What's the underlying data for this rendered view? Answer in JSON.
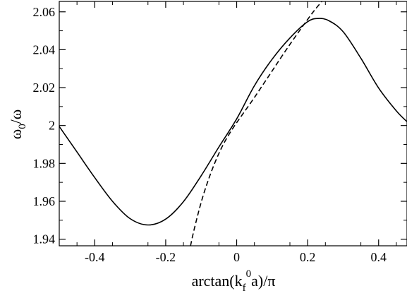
{
  "chart_data": {
    "type": "line",
    "xlabel": {
      "text": "arctan(k",
      "sub": "f",
      "sup": "0",
      "tail": "a)/π"
    },
    "ylabel": {
      "main": "ω",
      "sub": "0",
      "tail": "/ω"
    },
    "xlim": [
      -0.5,
      0.48
    ],
    "ylim": [
      1.9365,
      2.0655
    ],
    "x_ticks": [
      {
        "value": -0.4,
        "label": "-0.4"
      },
      {
        "value": -0.2,
        "label": "-0.2"
      },
      {
        "value": 0,
        "label": "0"
      },
      {
        "value": 0.2,
        "label": "0.2"
      },
      {
        "value": 0.4,
        "label": "0.4"
      }
    ],
    "y_ticks": [
      {
        "value": 1.94,
        "label": "1.94"
      },
      {
        "value": 1.96,
        "label": "1.96"
      },
      {
        "value": 1.98,
        "label": "1.98"
      },
      {
        "value": 2.0,
        "label": "2"
      },
      {
        "value": 2.02,
        "label": "2.02"
      },
      {
        "value": 2.04,
        "label": "2.04"
      },
      {
        "value": 2.06,
        "label": "2.06"
      }
    ],
    "series": [
      {
        "style": "solid",
        "color": "#000000",
        "x": [
          -0.5,
          -0.45,
          -0.4,
          -0.35,
          -0.3,
          -0.25,
          -0.2,
          -0.15,
          -0.1,
          -0.05,
          0,
          0.05,
          0.1,
          0.15,
          0.2,
          0.23,
          0.26,
          0.3,
          0.35,
          0.4,
          0.45,
          0.48
        ],
        "y": [
          1.9995,
          1.986,
          1.9725,
          1.96,
          1.9508,
          1.9475,
          1.9506,
          1.9598,
          1.9735,
          1.9887,
          2.0035,
          2.021,
          2.035,
          2.0462,
          2.0548,
          2.0565,
          2.0553,
          2.0495,
          2.0355,
          2.0198,
          2.0077,
          2.002
        ]
      },
      {
        "style": "dashed",
        "color": "#000000",
        "x": [
          -0.13,
          -0.12,
          -0.1,
          -0.08,
          -0.06,
          -0.04,
          -0.02,
          0,
          0.02,
          0.05,
          0.08,
          0.1,
          0.12,
          0.15,
          0.18,
          0.2,
          0.22,
          0.24
        ],
        "y": [
          1.9365,
          1.945,
          1.9595,
          1.9712,
          1.981,
          1.9892,
          1.9958,
          2.0015,
          2.0068,
          2.0148,
          2.0232,
          2.0288,
          2.0345,
          2.0428,
          2.0508,
          2.056,
          2.061,
          2.0655
        ]
      }
    ]
  }
}
